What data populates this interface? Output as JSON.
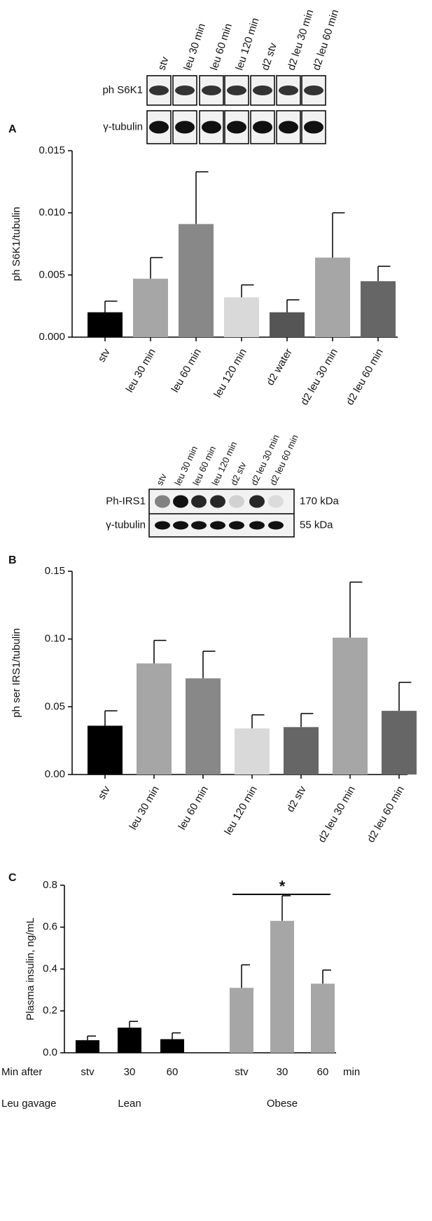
{
  "chart_data": [
    {
      "type": "bar",
      "panel": "A",
      "y_label": "ph S6K1/tubulin",
      "categories": [
        "stv",
        "leu 30 min",
        "leu 60 min",
        "leu 120 min",
        "d2 water",
        "d2 leu 30 min",
        "d2 leu 60 min"
      ],
      "values": [
        0.002,
        0.0047,
        0.0091,
        0.0032,
        0.002,
        0.0064,
        0.0045
      ],
      "errors": [
        0.0009,
        0.0017,
        0.0042,
        0.001,
        0.001,
        0.0036,
        0.0012
      ],
      "colors": [
        "#000000",
        "#a6a6a6",
        "#888888",
        "#d9d9d9",
        "#555555",
        "#a6a6a6",
        "#666666"
      ],
      "ylim": [
        0,
        0.015
      ],
      "yticks": [
        {
          "value": 0,
          "label": "0.000"
        },
        {
          "value": 0.005,
          "label": "0.005"
        },
        {
          "value": 0.01,
          "label": "0.010"
        },
        {
          "value": 0.015,
          "label": "0.015"
        }
      ],
      "blot": {
        "lanes": [
          "stv",
          "leu 30 min",
          "leu 60 min",
          "leu 120 min",
          "d2 stv",
          "d2 leu 30 min",
          "d2 leu 60 min"
        ],
        "rows": [
          "ph S6K1",
          "γ-tubulin"
        ]
      }
    },
    {
      "type": "bar",
      "panel": "B",
      "y_label": "ph ser IRS1/tubulin",
      "categories": [
        "stv",
        "leu 30 min",
        "leu 60 min",
        "leu 120 min",
        "d2 stv",
        "d2 leu 30 min",
        "d2 leu 60 min"
      ],
      "values": [
        0.036,
        0.082,
        0.071,
        0.034,
        0.035,
        0.101,
        0.047
      ],
      "errors": [
        0.011,
        0.017,
        0.02,
        0.01,
        0.01,
        0.041,
        0.021
      ],
      "colors": [
        "#000000",
        "#a6a6a6",
        "#888888",
        "#d9d9d9",
        "#666666",
        "#a6a6a6",
        "#666666"
      ],
      "ylim": [
        0,
        0.15
      ],
      "yticks": [
        {
          "value": 0,
          "label": "0.00"
        },
        0.05,
        {
          "value": 0.1,
          "label": "0.10"
        },
        0.15
      ],
      "blot": {
        "lanes": [
          "stv",
          "leu 30 min",
          "leu 60 min",
          "leu 120 min",
          "d2 stv",
          "d2 leu 30 min",
          "d2 leu 60 min"
        ],
        "rows": [
          "Ph-IRS1",
          "γ-tubulin"
        ],
        "sizes": [
          "170 kDa",
          "55 kDa"
        ]
      }
    },
    {
      "type": "grouped_bar",
      "panel": "C",
      "y_label": "Plasma insulin, ng/mL",
      "categories": [
        "stv",
        "30",
        "60"
      ],
      "groups": [
        {
          "name": "Lean",
          "color": "#000000",
          "values": [
            0.06,
            0.12,
            0.065
          ],
          "errors": [
            0.02,
            0.03,
            0.03
          ]
        },
        {
          "name": "Obese",
          "color": "#a6a6a6",
          "values": [
            0.31,
            0.63,
            0.33
          ],
          "errors": [
            0.11,
            0.12,
            0.065
          ]
        }
      ],
      "ylim": [
        0,
        0.8
      ],
      "yticks": [
        {
          "value": 0,
          "label": "0.0"
        },
        0.2,
        0.4,
        0.6,
        0.8
      ],
      "row_labels": [
        "Min after",
        "Leu gavage"
      ],
      "x_unit": "min",
      "annotation": "*"
    }
  ]
}
